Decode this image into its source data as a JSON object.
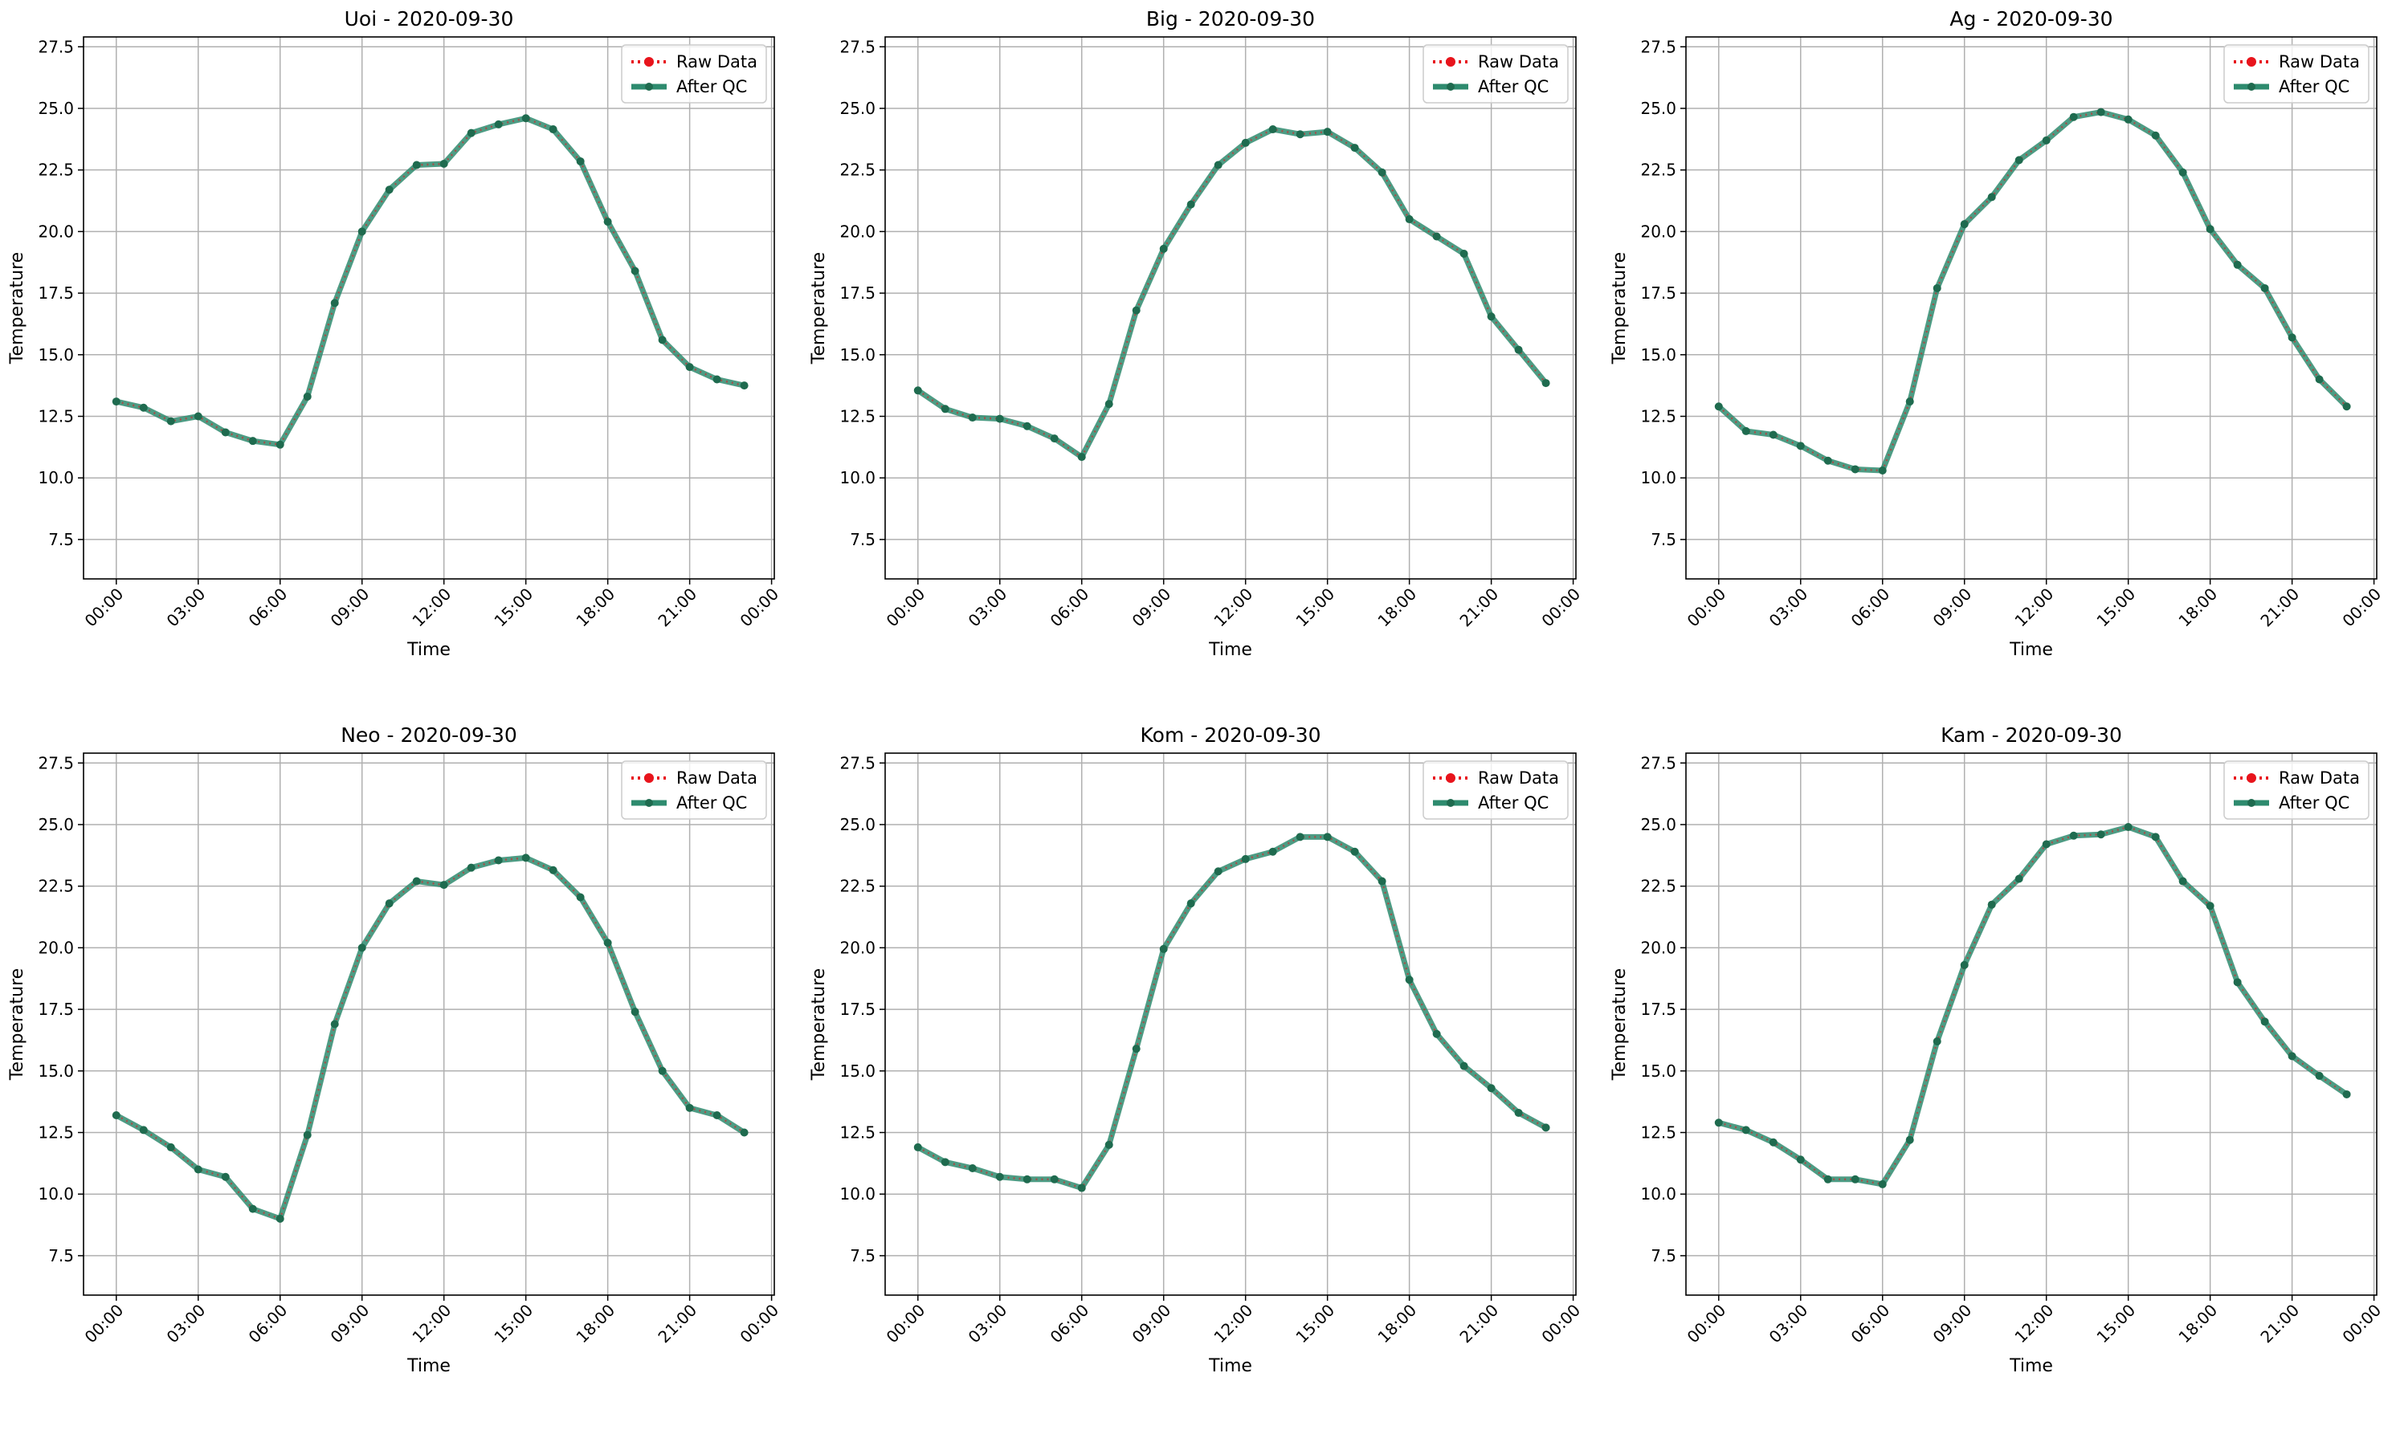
{
  "figure": {
    "xlabel": "Time",
    "ylabel": "Temperature",
    "xticks": [
      "00:00",
      "03:00",
      "06:00",
      "09:00",
      "12:00",
      "15:00",
      "18:00",
      "21:00",
      "00:00"
    ],
    "yticks": [
      "7.5",
      "10.0",
      "12.5",
      "15.0",
      "17.5",
      "20.0",
      "22.5",
      "25.0",
      "27.5"
    ],
    "legend": {
      "raw_label": "Raw Data",
      "qc_label": "After QC"
    },
    "colors": {
      "raw": "#e8141c",
      "qc": "#2e8b6e",
      "marker": "#1f6b4f",
      "grid": "#b0b0b0"
    }
  },
  "chart_data": [
    {
      "type": "line",
      "title": "Uoi - 2020-09-30",
      "xlabel": "Time",
      "ylabel": "Temperature",
      "ylim": [
        5.9,
        27.9
      ],
      "xlim_hours": [
        -1.2,
        24.1
      ],
      "x_hours": [
        0,
        1,
        2,
        3,
        4,
        5,
        6,
        7,
        8,
        9,
        10,
        11,
        12,
        13,
        14,
        15,
        16,
        17,
        18,
        19,
        20,
        21,
        22,
        23
      ],
      "series": [
        {
          "name": "Raw Data",
          "values": [
            13.1,
            12.85,
            12.3,
            12.5,
            11.85,
            11.5,
            11.35,
            13.3,
            17.1,
            20.0,
            21.7,
            22.7,
            22.75,
            24.0,
            24.35,
            24.6,
            24.15,
            22.85,
            20.4,
            18.4,
            15.6,
            14.5,
            14.0,
            13.75
          ]
        },
        {
          "name": "After QC",
          "values": [
            13.1,
            12.85,
            12.3,
            12.5,
            11.85,
            11.5,
            11.35,
            13.3,
            17.1,
            20.0,
            21.7,
            22.7,
            22.75,
            24.0,
            24.35,
            24.6,
            24.15,
            22.85,
            20.4,
            18.4,
            15.6,
            14.5,
            14.0,
            13.75
          ]
        }
      ],
      "legend_position": "upper right",
      "grid": true
    },
    {
      "type": "line",
      "title": "Big - 2020-09-30",
      "xlabel": "Time",
      "ylabel": "Temperature",
      "ylim": [
        5.9,
        27.9
      ],
      "xlim_hours": [
        -1.2,
        24.1
      ],
      "x_hours": [
        0,
        1,
        2,
        3,
        4,
        5,
        6,
        7,
        8,
        9,
        10,
        11,
        12,
        13,
        14,
        15,
        16,
        17,
        18,
        19,
        20,
        21,
        22,
        23
      ],
      "series": [
        {
          "name": "Raw Data",
          "values": [
            13.55,
            12.8,
            12.45,
            12.4,
            12.1,
            11.6,
            10.85,
            13.0,
            16.8,
            19.3,
            21.1,
            22.7,
            23.6,
            24.15,
            23.95,
            24.05,
            23.4,
            22.4,
            20.5,
            19.8,
            19.1,
            16.55,
            15.2,
            13.85
          ]
        },
        {
          "name": "After QC",
          "values": [
            13.55,
            12.8,
            12.45,
            12.4,
            12.1,
            11.6,
            10.85,
            13.0,
            16.8,
            19.3,
            21.1,
            22.7,
            23.6,
            24.15,
            23.95,
            24.05,
            23.4,
            22.4,
            20.5,
            19.8,
            19.1,
            16.55,
            15.2,
            13.85
          ]
        }
      ],
      "legend_position": "upper right",
      "grid": true
    },
    {
      "type": "line",
      "title": "Ag - 2020-09-30",
      "xlabel": "Time",
      "ylabel": "Temperature",
      "ylim": [
        5.9,
        27.9
      ],
      "xlim_hours": [
        -1.2,
        24.1
      ],
      "x_hours": [
        0,
        1,
        2,
        3,
        4,
        5,
        6,
        7,
        8,
        9,
        10,
        11,
        12,
        13,
        14,
        15,
        16,
        17,
        18,
        19,
        20,
        21,
        22,
        23
      ],
      "series": [
        {
          "name": "Raw Data",
          "values": [
            12.9,
            11.9,
            11.75,
            11.3,
            10.7,
            10.35,
            10.3,
            13.1,
            17.7,
            20.3,
            21.4,
            22.9,
            23.7,
            24.65,
            24.85,
            24.55,
            23.9,
            22.4,
            20.1,
            18.65,
            17.7,
            15.7,
            14.0,
            12.9
          ]
        },
        {
          "name": "After QC",
          "values": [
            12.9,
            11.9,
            11.75,
            11.3,
            10.7,
            10.35,
            10.3,
            13.1,
            17.7,
            20.3,
            21.4,
            22.9,
            23.7,
            24.65,
            24.85,
            24.55,
            23.9,
            22.4,
            20.1,
            18.65,
            17.7,
            15.7,
            14.0,
            12.9
          ]
        }
      ],
      "legend_position": "upper right",
      "grid": true
    },
    {
      "type": "line",
      "title": "Neo - 2020-09-30",
      "xlabel": "Time",
      "ylabel": "Temperature",
      "ylim": [
        5.9,
        27.9
      ],
      "xlim_hours": [
        -1.2,
        24.1
      ],
      "x_hours": [
        0,
        1,
        2,
        3,
        4,
        5,
        6,
        7,
        8,
        9,
        10,
        11,
        12,
        13,
        14,
        15,
        16,
        17,
        18,
        19,
        20,
        21,
        22,
        23
      ],
      "series": [
        {
          "name": "Raw Data",
          "values": [
            13.2,
            12.6,
            11.9,
            11.0,
            10.7,
            9.4,
            9.0,
            12.4,
            16.9,
            20.0,
            21.8,
            22.7,
            22.55,
            23.25,
            23.55,
            23.65,
            23.15,
            22.05,
            20.2,
            17.4,
            15.0,
            13.5,
            13.2,
            12.5
          ]
        },
        {
          "name": "After QC",
          "values": [
            13.2,
            12.6,
            11.9,
            11.0,
            10.7,
            9.4,
            9.0,
            12.4,
            16.9,
            20.0,
            21.8,
            22.7,
            22.55,
            23.25,
            23.55,
            23.65,
            23.15,
            22.05,
            20.2,
            17.4,
            15.0,
            13.5,
            13.2,
            12.5
          ]
        }
      ],
      "legend_position": "upper right",
      "grid": true
    },
    {
      "type": "line",
      "title": "Kom - 2020-09-30",
      "xlabel": "Time",
      "ylabel": "Temperature",
      "ylim": [
        5.9,
        27.9
      ],
      "xlim_hours": [
        -1.2,
        24.1
      ],
      "x_hours": [
        0,
        1,
        2,
        3,
        4,
        5,
        6,
        7,
        8,
        9,
        10,
        11,
        12,
        13,
        14,
        15,
        16,
        17,
        18,
        19,
        20,
        21,
        22,
        23
      ],
      "series": [
        {
          "name": "Raw Data",
          "values": [
            11.9,
            11.3,
            11.05,
            10.7,
            10.6,
            10.6,
            10.25,
            12.0,
            15.9,
            19.95,
            21.8,
            23.1,
            23.6,
            23.9,
            24.5,
            24.5,
            23.9,
            22.7,
            18.7,
            16.5,
            15.2,
            14.3,
            13.3,
            12.7
          ]
        },
        {
          "name": "After QC",
          "values": [
            11.9,
            11.3,
            11.05,
            10.7,
            10.6,
            10.6,
            10.25,
            12.0,
            15.9,
            19.95,
            21.8,
            23.1,
            23.6,
            23.9,
            24.5,
            24.5,
            23.9,
            22.7,
            18.7,
            16.5,
            15.2,
            14.3,
            13.3,
            12.7
          ]
        }
      ],
      "legend_position": "upper right",
      "grid": true
    },
    {
      "type": "line",
      "title": "Kam - 2020-09-30",
      "xlabel": "Time",
      "ylabel": "Temperature",
      "ylim": [
        5.9,
        27.9
      ],
      "xlim_hours": [
        -1.2,
        24.1
      ],
      "x_hours": [
        0,
        1,
        2,
        3,
        4,
        5,
        6,
        7,
        8,
        9,
        10,
        11,
        12,
        13,
        14,
        15,
        16,
        17,
        18,
        19,
        20,
        21,
        22,
        23
      ],
      "series": [
        {
          "name": "Raw Data",
          "values": [
            12.9,
            12.6,
            12.1,
            11.4,
            10.6,
            10.6,
            10.4,
            12.2,
            16.2,
            19.3,
            21.75,
            22.8,
            24.2,
            24.55,
            24.6,
            24.9,
            24.5,
            22.7,
            21.7,
            18.6,
            17.0,
            15.6,
            14.8,
            14.05
          ]
        },
        {
          "name": "After QC",
          "values": [
            12.9,
            12.6,
            12.1,
            11.4,
            10.6,
            10.6,
            10.4,
            12.2,
            16.2,
            19.3,
            21.75,
            22.8,
            24.2,
            24.55,
            24.6,
            24.9,
            24.5,
            22.7,
            21.7,
            18.6,
            17.0,
            15.6,
            14.8,
            14.05
          ]
        }
      ],
      "legend_position": "upper right",
      "grid": true
    }
  ]
}
